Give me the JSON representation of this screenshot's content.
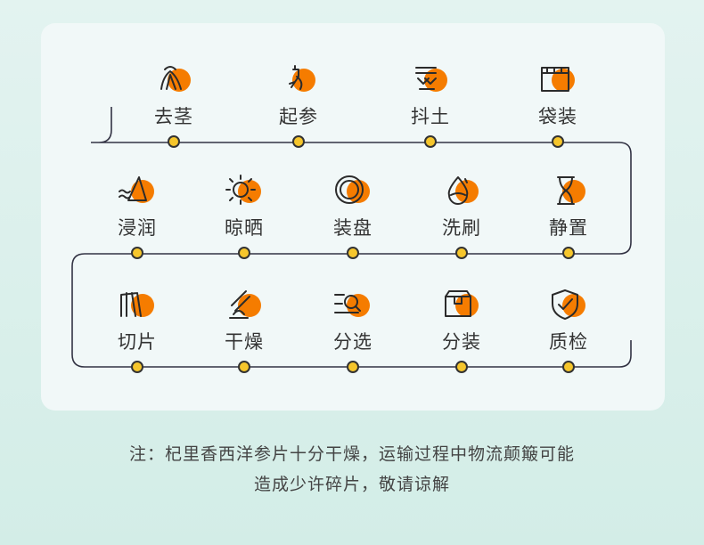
{
  "colors": {
    "accent": "#f57c00",
    "line": "#333344",
    "dot": "#f6c62c"
  },
  "steps": [
    {
      "label": "去茎",
      "icon": "root-icon"
    },
    {
      "label": "起参",
      "icon": "ginseng-icon"
    },
    {
      "label": "抖土",
      "icon": "shake-soil-icon"
    },
    {
      "label": "袋装",
      "icon": "bag-icon"
    },
    {
      "label": "浸润",
      "icon": "soak-icon"
    },
    {
      "label": "晾晒",
      "icon": "sun-icon"
    },
    {
      "label": "装盘",
      "icon": "plate-icon"
    },
    {
      "label": "洗刷",
      "icon": "water-drop-icon"
    },
    {
      "label": "静置",
      "icon": "hourglass-icon"
    },
    {
      "label": "切片",
      "icon": "slices-icon"
    },
    {
      "label": "干燥",
      "icon": "dry-icon"
    },
    {
      "label": "分选",
      "icon": "sort-search-icon"
    },
    {
      "label": "分装",
      "icon": "box-icon"
    },
    {
      "label": "质检",
      "icon": "shield-check-icon"
    }
  ],
  "note": {
    "line1": "注：杞里香西洋参片十分干燥，运输过程中物流颠簸可能",
    "line2": "造成少许碎片，敬请谅解"
  }
}
